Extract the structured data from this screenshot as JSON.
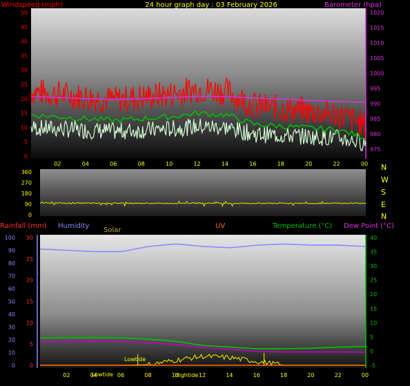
{
  "header": {
    "title": "24 hour graph day : 03 February 2026",
    "wind_label": "Windspeed (mph)",
    "baro_label": "Barometer (hpa)"
  },
  "colors": {
    "wind_gust": "#ff0000",
    "wind_avg": "#d6ffd6",
    "wind_green": "#00c000",
    "barometer": "#e030e0",
    "direction": "#e8e800",
    "humidity": "#8a8aff",
    "temperature": "#00c000",
    "dewpoint": "#c000c0",
    "rain": "#ff3030",
    "solar": "#e8d000",
    "uv": "#ff6600",
    "title": "#ffff00"
  },
  "x_ticks": [
    "02",
    "04",
    "06",
    "08",
    "10",
    "12",
    "14",
    "16",
    "18",
    "20",
    "22",
    "00"
  ],
  "wind_panel": {
    "wind_ticks": [
      "50",
      "45",
      "40",
      "35",
      "30",
      "25",
      "20",
      "15",
      "10",
      "5",
      "0"
    ],
    "baro_ticks": [
      "1020",
      "1015",
      "1010",
      "1005",
      "1000",
      "995",
      "990",
      "985",
      "980",
      "975"
    ]
  },
  "dir_panel": {
    "deg_ticks": [
      "360",
      "270",
      "180",
      "90",
      "0"
    ],
    "compass": [
      "N",
      "W",
      "S",
      "E",
      "N"
    ]
  },
  "lower_panel": {
    "labels": {
      "rain": "Rainfall (mm)",
      "humidity": "Humidity",
      "solar": "Solar",
      "uv": "UV",
      "temperature": "Temperature (°C)",
      "dewpoint": "Dew Point (°C)"
    },
    "humidity_ticks": [
      "100",
      "90",
      "80",
      "70",
      "60",
      "50",
      "40",
      "30",
      "20",
      "10",
      "0"
    ],
    "rain_ticks": [
      "30",
      "25",
      "20",
      "15",
      "10",
      "5",
      "0"
    ],
    "temp_ticks": [
      "40",
      "35",
      "30",
      "25",
      "20",
      "15",
      "10",
      "5",
      "0",
      "-5"
    ],
    "tide_labels": {
      "lowtide_1": "Lowtide",
      "lowtide_2": "Lowtide",
      "hightide": "Hightide"
    }
  },
  "chart_data": [
    {
      "type": "line",
      "title": "24 hour graph day : 03 February 2026",
      "x_hours": [
        0,
        2,
        4,
        6,
        8,
        10,
        12,
        14,
        16,
        18,
        20,
        22,
        24
      ],
      "series": [
        {
          "name": "Windspeed (mph)",
          "axis": "left",
          "values": [
            22,
            21,
            20,
            19,
            20,
            21,
            23,
            22,
            17,
            16,
            15,
            14,
            10
          ]
        },
        {
          "name": "Barometer (hpa)",
          "axis": "right",
          "values": [
            992.3,
            992.0,
            991.6,
            991.4,
            991.6,
            992.0,
            992.4,
            992.3,
            991.8,
            991.5,
            991.0,
            990.7,
            990.4
          ]
        }
      ],
      "ylim_left": [
        0,
        50
      ],
      "ylim_right": [
        975,
        1020
      ]
    },
    {
      "type": "line",
      "series": [
        {
          "name": "Wind direction",
          "values": [
            99,
            98,
            97,
            98,
            96,
            97,
            98,
            97,
            96,
            97,
            96,
            97,
            98
          ]
        }
      ],
      "ylim": [
        0,
        360
      ]
    },
    {
      "type": "line",
      "series": [
        {
          "name": "Humidity",
          "axis": "left",
          "values": [
            91,
            90,
            89,
            89,
            93,
            95,
            93,
            92,
            94,
            95,
            94,
            94,
            93
          ]
        },
        {
          "name": "Temperature (°C)",
          "axis": "right",
          "values": [
            4.6,
            4.7,
            4.8,
            4.6,
            4.2,
            3.4,
            2.0,
            1.4,
            0.8,
            0.8,
            1.0,
            1.4,
            1.6
          ]
        },
        {
          "name": "Dew Point (°C)",
          "axis": "right",
          "values": [
            3.2,
            3.3,
            3.5,
            3.4,
            3.0,
            2.3,
            1.2,
            0.6,
            -0.1,
            -0.3,
            -0.3,
            -0.3,
            -0.4
          ]
        },
        {
          "name": "Solar",
          "axis": "left",
          "values": [
            0,
            0,
            0,
            0,
            0.5,
            4,
            7,
            6,
            3,
            0,
            0,
            0,
            0
          ]
        }
      ],
      "ylim_left": [
        0,
        100
      ],
      "ylim_right": [
        -5,
        40
      ]
    }
  ]
}
